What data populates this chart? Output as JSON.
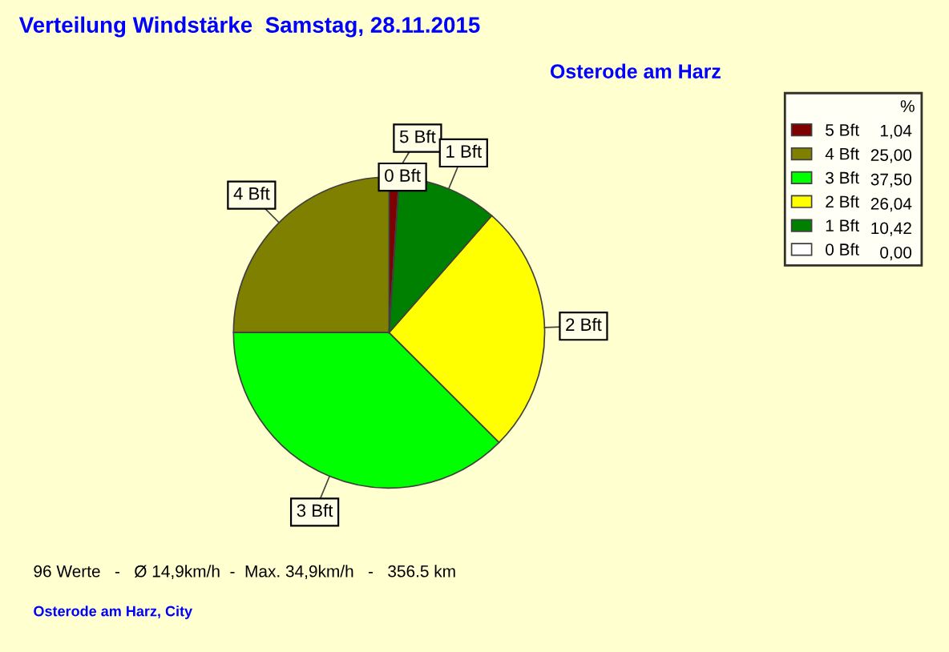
{
  "chart_data": {
    "type": "pie",
    "title": "Verteilung Windstärke  Samstag, 28.11.2015",
    "subtitle": "Osterode am Harz",
    "categories": [
      "5 Bft",
      "4 Bft",
      "3 Bft",
      "2 Bft",
      "1 Bft",
      "0 Bft"
    ],
    "values": [
      1.04,
      25.0,
      37.5,
      26.04,
      10.42,
      0.0
    ],
    "value_labels": [
      "1,04",
      "25,00",
      "37,50",
      "26,04",
      "10,42",
      "0,00"
    ],
    "colors": [
      "#800000",
      "#808000",
      "#00ff00",
      "#ffff00",
      "#008000",
      "#ffffff"
    ],
    "legend": "top right",
    "legend_title": "%",
    "annotations": [
      "96 Werte   -   Ø 14,9km/h  -  Max. 34,9km/h   -   356.5 km",
      "Osterode am Harz, City"
    ]
  }
}
